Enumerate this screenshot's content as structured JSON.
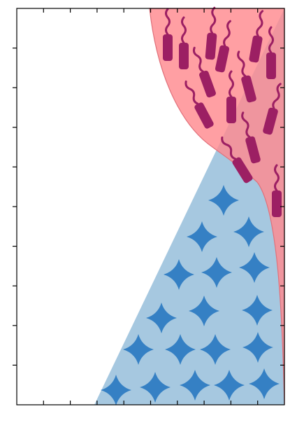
{
  "colors": {
    "background": "#ffffff",
    "blue_region": "#a6c8e0",
    "blue_shape": "#3580c4",
    "red_region": "#ff8a8f",
    "overlap_tint": "#b0567a",
    "red_edge": "#e0707a",
    "microbe": "#9c1f63",
    "axis": "#000000"
  },
  "icons": {
    "star_shape": "four-point-star-icon",
    "rod_shape": "flagellated-rod-icon"
  },
  "counts": {
    "stars": 21,
    "rods": 19
  }
}
